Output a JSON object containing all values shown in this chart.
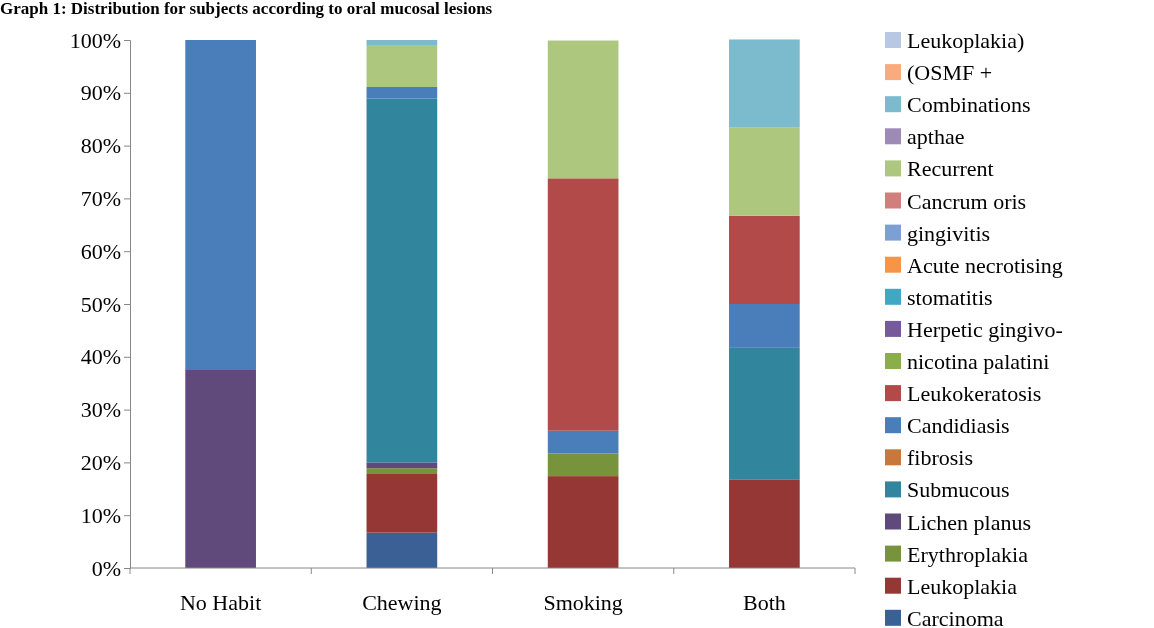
{
  "chart_data": {
    "type": "bar",
    "stacked": true,
    "title": "Graph 1: Distribution for subjects according to oral mucosal lesions",
    "categories": [
      "No Habit",
      "Chewing",
      "Smoking",
      "Both"
    ],
    "ylim": [
      0,
      100
    ],
    "yticks": [
      {
        "value": 0,
        "label": "0%"
      },
      {
        "value": 10,
        "label": "10%"
      },
      {
        "value": 20,
        "label": "20%"
      },
      {
        "value": 30,
        "label": "30%"
      },
      {
        "value": 40,
        "label": "40%"
      },
      {
        "value": 50,
        "label": "50%"
      },
      {
        "value": 60,
        "label": "60%"
      },
      {
        "value": 70,
        "label": "70%"
      },
      {
        "value": 80,
        "label": "80%"
      },
      {
        "value": 90,
        "label": "90%"
      },
      {
        "value": 100,
        "label": "100%"
      }
    ],
    "grid": false,
    "legend": "right",
    "series": [
      {
        "name": "Carcinoma",
        "color": "#3a6096",
        "values": [
          0,
          6.7,
          0,
          0
        ]
      },
      {
        "name": "Leukoplakia",
        "color": "#953735",
        "values": [
          0,
          11.1,
          17.4,
          16.7
        ]
      },
      {
        "name": "Erythroplakia",
        "color": "#77933c",
        "values": [
          0,
          1.1,
          4.3,
          0
        ]
      },
      {
        "name": "Lichen planus",
        "color": "#604a7b",
        "values": [
          37.5,
          1.1,
          0,
          0
        ]
      },
      {
        "name": "Submucous",
        "color": "#31859c",
        "values": [
          0,
          68.9,
          0,
          25
        ]
      },
      {
        "name": "fibrosis",
        "color": "#c8783a",
        "values": [
          0,
          0,
          0,
          0
        ]
      },
      {
        "name": "Candidiasis",
        "color": "#4a7ebb",
        "values": [
          62.5,
          2.2,
          4.3,
          8.3
        ]
      },
      {
        "name": "Leukokeratosis",
        "color": "#b14a48",
        "values": [
          0,
          0,
          47.8,
          16.7
        ]
      },
      {
        "name": "nicotina palatini",
        "color": "#8cae4a",
        "values": [
          0,
          0,
          0,
          0
        ]
      },
      {
        "name": "Herpetic gingivo-",
        "color": "#775a9c",
        "values": [
          0,
          0,
          0,
          0
        ]
      },
      {
        "name": "stomatitis",
        "color": "#40a8c4",
        "values": [
          0,
          0,
          0,
          0
        ]
      },
      {
        "name": "Acute necrotising",
        "color": "#f69545",
        "values": [
          0,
          0,
          0,
          0
        ]
      },
      {
        "name": "gingivitis",
        "color": "#7e9fd3",
        "values": [
          0,
          0,
          0,
          0
        ]
      },
      {
        "name": "Cancrum oris",
        "color": "#d27e7c",
        "values": [
          0,
          0,
          0,
          0
        ]
      },
      {
        "name": "Recurrent",
        "color": "#adc77f",
        "values": [
          0,
          7.8,
          26.1,
          16.7
        ]
      },
      {
        "name": "apthae",
        "color": "#9d8bb5",
        "values": [
          0,
          0,
          0,
          0
        ]
      },
      {
        "name": "Combinations",
        "color": "#7cbace",
        "values": [
          0,
          1.1,
          0,
          16.7
        ]
      },
      {
        "name": "(OSMF +",
        "color": "#f9ab7e",
        "values": [
          0,
          0,
          0,
          0
        ]
      },
      {
        "name": "Leukoplakia)",
        "color": "#b9c8e2",
        "values": [
          0,
          0,
          0,
          0
        ]
      }
    ]
  }
}
